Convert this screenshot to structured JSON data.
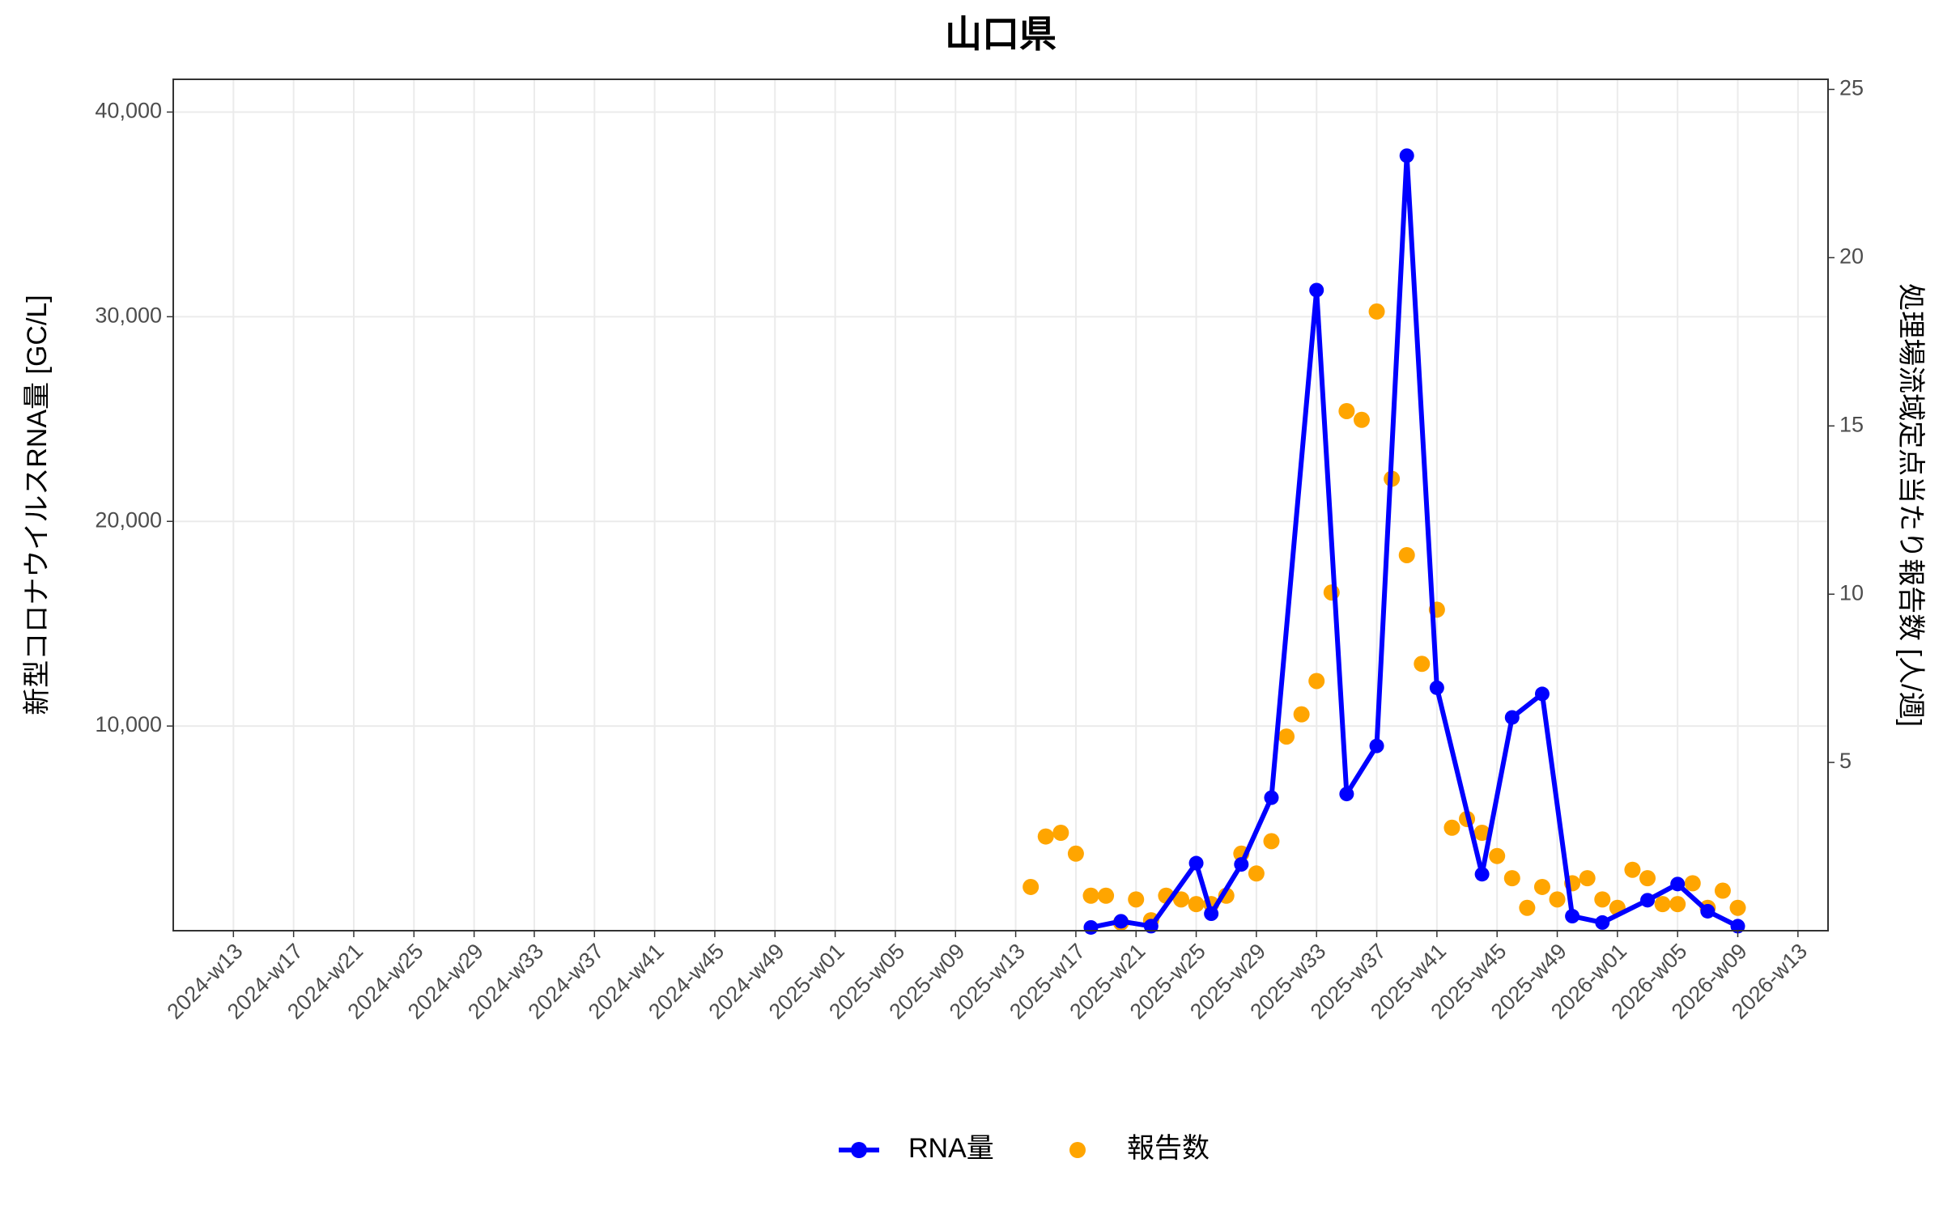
{
  "chart_data": {
    "type": "line",
    "title": "山口県",
    "y_label": "新型コロナウイルスRNA量 [GC/L]",
    "y2_label": "処理場流域定点当たり報告数 [人/週]",
    "xlim": [
      "2024-w09",
      "2026-w15"
    ],
    "xticks": [
      "2024-w13",
      "2024-w17",
      "2024-w21",
      "2024-w25",
      "2024-w29",
      "2024-w33",
      "2024-w37",
      "2024-w41",
      "2024-w45",
      "2024-w49",
      "2025-w01",
      "2025-w05",
      "2025-w09",
      "2025-w13",
      "2025-w17",
      "2025-w21",
      "2025-w25",
      "2025-w29",
      "2025-w33",
      "2025-w37",
      "2025-w41",
      "2025-w45",
      "2025-w49",
      "2026-w01",
      "2026-w05",
      "2026-w09",
      "2026-w13"
    ],
    "ylim": [
      0,
      41600
    ],
    "yticks": [
      {
        "value": 10000,
        "label": "10,000"
      },
      {
        "value": 20000,
        "label": "20,000"
      },
      {
        "value": 30000,
        "label": "30,000"
      },
      {
        "value": 40000,
        "label": "40,000"
      }
    ],
    "y2lim": [
      0,
      25.3
    ],
    "y2ticks": [
      5,
      10,
      15,
      20,
      25
    ],
    "grid": true,
    "legend": "bottom",
    "series": [
      {
        "name": "RNA量",
        "type": "line",
        "color": "#0000ff",
        "x": [
          "2025-w18",
          "2025-w20",
          "2025-w22",
          "2025-w25",
          "2025-w26",
          "2025-w28",
          "2025-w30",
          "2025-w33",
          "2025-w35",
          "2025-w37",
          "2025-w39",
          "2025-w41",
          "2025-w44",
          "2025-w46",
          "2025-w48",
          "2025-w50",
          "2025-w52",
          "2026-w03",
          "2026-w05",
          "2026-w07",
          "2026-w09"
        ],
        "values": [
          160,
          460,
          220,
          3300,
          830,
          3240,
          6500,
          31300,
          6680,
          9030,
          37870,
          11870,
          2760,
          10420,
          11570,
          710,
          400,
          1490,
          2280,
          950,
          220
        ]
      },
      {
        "name": "報告数",
        "type": "scatter",
        "axis": "y2",
        "color": "#ffa500",
        "x": [
          "2025-w14",
          "2025-w15",
          "2025-w16",
          "2025-w17",
          "2025-w18",
          "2025-w19",
          "2025-w20",
          "2025-w21",
          "2025-w22",
          "2025-w23",
          "2025-w24",
          "2025-w25",
          "2025-w26",
          "2025-w27",
          "2025-w28",
          "2025-w29",
          "2025-w30",
          "2025-w31",
          "2025-w32",
          "2025-w33",
          "2025-w34",
          "2025-w35",
          "2025-w36",
          "2025-w37",
          "2025-w38",
          "2025-w39",
          "2025-w40",
          "2025-w41",
          "2025-w42",
          "2025-w43",
          "2025-w44",
          "2025-w45",
          "2025-w46",
          "2025-w47",
          "2025-w48",
          "2025-w49",
          "2025-w50",
          "2025-w51",
          "2025-w52",
          "2026-w01",
          "2026-w02",
          "2026-w03",
          "2026-w04",
          "2026-w05",
          "2026-w06",
          "2026-w07",
          "2026-w08",
          "2026-w09"
        ],
        "values": [
          1.3,
          2.8,
          2.91,
          2.29,
          1.04,
          1.04,
          0.24,
          0.93,
          0.31,
          1.04,
          0.93,
          0.79,
          0.79,
          1.04,
          2.29,
          1.7,
          2.66,
          5.77,
          6.43,
          7.42,
          10.05,
          15.44,
          15.18,
          18.4,
          13.43,
          11.16,
          7.93,
          9.54,
          3.06,
          3.32,
          2.91,
          2.22,
          1.56,
          0.68,
          1.3,
          0.93,
          1.41,
          1.56,
          0.93,
          0.68,
          1.81,
          1.56,
          0.79,
          0.79,
          1.41,
          0.68,
          1.19,
          0.68
        ]
      }
    ]
  }
}
